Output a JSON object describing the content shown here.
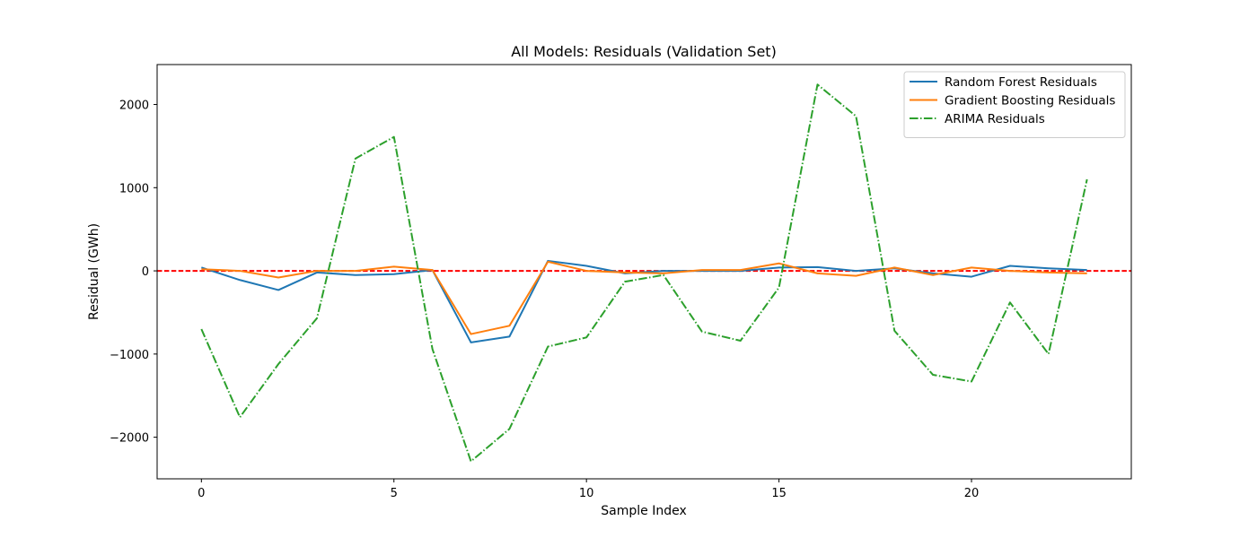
{
  "chart_data": {
    "type": "line",
    "title": "All Models: Residuals (Validation Set)",
    "xlabel": "Sample Index",
    "ylabel": "Residual (GWh)",
    "xlim": [
      -1.15,
      24.15
    ],
    "ylim": [
      -2500,
      2480
    ],
    "xticks": [
      0,
      5,
      10,
      15,
      20
    ],
    "yticks": [
      -2000,
      -1000,
      0,
      1000,
      2000
    ],
    "x": [
      0,
      1,
      2,
      3,
      4,
      5,
      6,
      7,
      8,
      9,
      10,
      11,
      12,
      13,
      14,
      15,
      16,
      17,
      18,
      19,
      20,
      21,
      22,
      23
    ],
    "series": [
      {
        "name": "Random Forest Residuals",
        "color": "#1f77b4",
        "style": "solid",
        "values": [
          40,
          -110,
          -230,
          -20,
          -50,
          -40,
          10,
          -860,
          -790,
          120,
          60,
          -30,
          0,
          0,
          0,
          40,
          45,
          0,
          30,
          -30,
          -70,
          60,
          30,
          10
        ]
      },
      {
        "name": "Gradient Boosting Residuals",
        "color": "#ff7f0e",
        "style": "solid",
        "values": [
          20,
          0,
          -80,
          0,
          0,
          50,
          10,
          -760,
          -660,
          110,
          0,
          -20,
          -30,
          10,
          10,
          90,
          -30,
          -60,
          40,
          -50,
          40,
          0,
          -20,
          -30
        ]
      },
      {
        "name": "ARIMA Residuals",
        "color": "#2ca02c",
        "style": "dashdot",
        "values": [
          -700,
          -1760,
          -1120,
          -570,
          1350,
          1610,
          -940,
          -2290,
          -1900,
          -910,
          -800,
          -130,
          -50,
          -730,
          -840,
          -200,
          2240,
          1860,
          -720,
          -1250,
          -1330,
          -380,
          -1000,
          1100
        ]
      }
    ],
    "reference_line": {
      "y": 0,
      "color": "#ff0000",
      "style": "dashed"
    },
    "legend": {
      "position": "top-right"
    },
    "grid": false
  }
}
